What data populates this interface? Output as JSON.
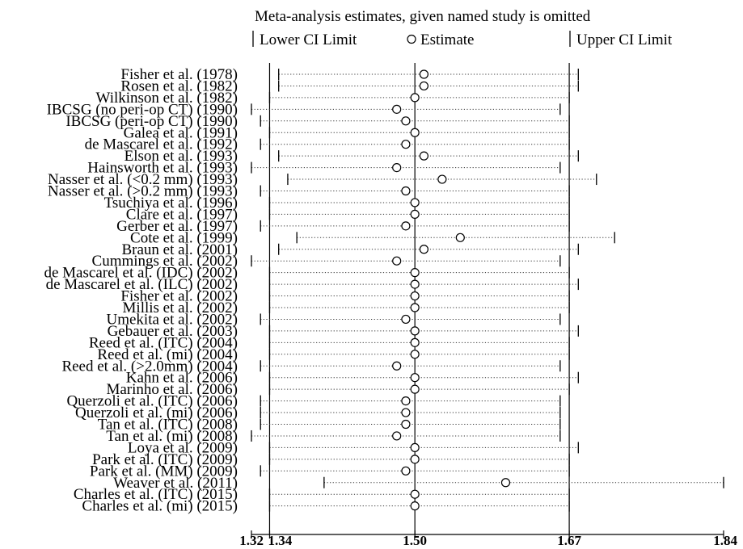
{
  "chart_data": {
    "type": "scatter",
    "title": "Meta-analysis estimates, given named study is omitted",
    "legend": {
      "lower": "Lower CI Limit",
      "estimate": "Estimate",
      "upper": "Upper CI Limit",
      "placement": "top"
    },
    "xlim": [
      1.32,
      1.84
    ],
    "x_ticks": [
      {
        "value": 1.32,
        "label": "1.32"
      },
      {
        "value": 1.34,
        "label": "1.34"
      },
      {
        "value": 1.5,
        "label": "1.50"
      },
      {
        "value": 1.67,
        "label": "1.67"
      },
      {
        "value": 1.84,
        "label": "1.84"
      }
    ],
    "reference_lines": [
      1.34,
      1.5,
      1.67
    ],
    "studies": [
      {
        "label": "Fisher et al. (1978)",
        "lower": 1.35,
        "estimate": 1.51,
        "upper": 1.68
      },
      {
        "label": "Rosen et al. (1982)",
        "lower": 1.35,
        "estimate": 1.51,
        "upper": 1.68
      },
      {
        "label": "Wilkinson et al. (1982)",
        "lower": 1.34,
        "estimate": 1.5,
        "upper": 1.67
      },
      {
        "label": "IBCSG (no peri-op CT) (1990)",
        "lower": 1.32,
        "estimate": 1.48,
        "upper": 1.66
      },
      {
        "label": "IBCSG (peri-op CT) (1990)",
        "lower": 1.33,
        "estimate": 1.49,
        "upper": 1.67
      },
      {
        "label": "Galea et al. (1991)",
        "lower": 1.34,
        "estimate": 1.5,
        "upper": 1.67
      },
      {
        "label": "de Mascarel et al. (1992)",
        "lower": 1.33,
        "estimate": 1.49,
        "upper": 1.67
      },
      {
        "label": "Elson et al. (1993)",
        "lower": 1.35,
        "estimate": 1.51,
        "upper": 1.68
      },
      {
        "label": "Hainsworth et al. (1993)",
        "lower": 1.32,
        "estimate": 1.48,
        "upper": 1.66
      },
      {
        "label": "Nasser et al. (<0.2 mm) (1993)",
        "lower": 1.36,
        "estimate": 1.53,
        "upper": 1.7
      },
      {
        "label": "Nasser et al. (>0.2 mm) (1993)",
        "lower": 1.33,
        "estimate": 1.49,
        "upper": 1.67
      },
      {
        "label": "Tsuchiya et al. (1996)",
        "lower": 1.34,
        "estimate": 1.5,
        "upper": 1.67
      },
      {
        "label": "Clare et al. (1997)",
        "lower": 1.34,
        "estimate": 1.5,
        "upper": 1.67
      },
      {
        "label": "Gerber et al. (1997)",
        "lower": 1.33,
        "estimate": 1.49,
        "upper": 1.67
      },
      {
        "label": "Cote et al. (1999)",
        "lower": 1.37,
        "estimate": 1.55,
        "upper": 1.72
      },
      {
        "label": "Braun et al. (2001)",
        "lower": 1.35,
        "estimate": 1.51,
        "upper": 1.68
      },
      {
        "label": "Cummings et al. (2002)",
        "lower": 1.32,
        "estimate": 1.48,
        "upper": 1.66
      },
      {
        "label": "de Mascarel et al. (IDC) (2002)",
        "lower": 1.34,
        "estimate": 1.5,
        "upper": 1.67
      },
      {
        "label": "de Mascarel et al. (ILC) (2002)",
        "lower": 1.34,
        "estimate": 1.5,
        "upper": 1.68
      },
      {
        "label": "Fisher et al. (2002)",
        "lower": 1.34,
        "estimate": 1.5,
        "upper": 1.67
      },
      {
        "label": "Millis et al. (2002)",
        "lower": 1.34,
        "estimate": 1.5,
        "upper": 1.67
      },
      {
        "label": "Umekita et al. (2002)",
        "lower": 1.33,
        "estimate": 1.49,
        "upper": 1.66
      },
      {
        "label": "Gebauer et al. (2003)",
        "lower": 1.34,
        "estimate": 1.5,
        "upper": 1.68
      },
      {
        "label": "Reed et al. (ITC) (2004)",
        "lower": 1.34,
        "estimate": 1.5,
        "upper": 1.67
      },
      {
        "label": "Reed et al. (mi) (2004)",
        "lower": 1.34,
        "estimate": 1.5,
        "upper": 1.67
      },
      {
        "label": "Reed et al. (>2.0mm) (2004)",
        "lower": 1.33,
        "estimate": 1.48,
        "upper": 1.66
      },
      {
        "label": "Kahn et al. (2006)",
        "lower": 1.34,
        "estimate": 1.5,
        "upper": 1.68
      },
      {
        "label": "Marinho et al. (2006)",
        "lower": 1.34,
        "estimate": 1.5,
        "upper": 1.67
      },
      {
        "label": "Querzoli et al. (ITC) (2006)",
        "lower": 1.33,
        "estimate": 1.49,
        "upper": 1.66
      },
      {
        "label": "Querzoli et al. (mi) (2006)",
        "lower": 1.33,
        "estimate": 1.49,
        "upper": 1.66
      },
      {
        "label": "Tan et al. (ITC) (2008)",
        "lower": 1.33,
        "estimate": 1.49,
        "upper": 1.66
      },
      {
        "label": "Tan et al. (mi) (2008)",
        "lower": 1.32,
        "estimate": 1.48,
        "upper": 1.66
      },
      {
        "label": "Loya et al. (2009)",
        "lower": 1.34,
        "estimate": 1.5,
        "upper": 1.68
      },
      {
        "label": "Park et al. (ITC) (2009)",
        "lower": 1.34,
        "estimate": 1.5,
        "upper": 1.67
      },
      {
        "label": "Park et al. (MM) (2009)",
        "lower": 1.33,
        "estimate": 1.49,
        "upper": 1.67
      },
      {
        "label": "Weaver et al. (2011)",
        "lower": 1.4,
        "estimate": 1.6,
        "upper": 1.84
      },
      {
        "label": "Charles et al. (ITC) (2015)",
        "lower": 1.34,
        "estimate": 1.5,
        "upper": 1.67
      },
      {
        "label": "Charles et al. (mi) (2015)",
        "lower": 1.34,
        "estimate": 1.5,
        "upper": 1.67
      }
    ]
  }
}
